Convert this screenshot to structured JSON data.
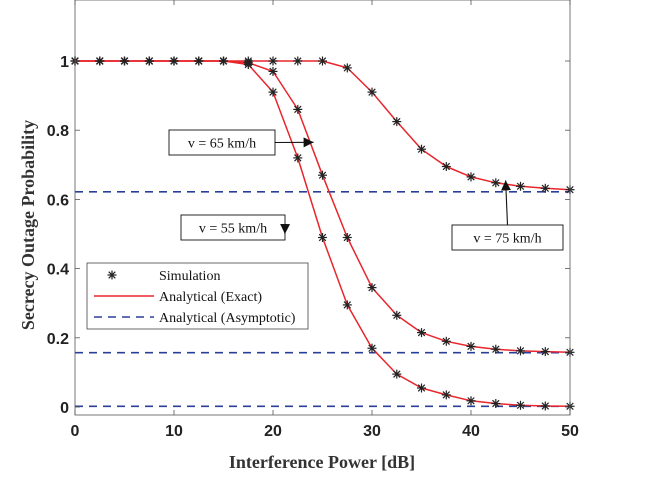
{
  "chart_data": {
    "type": "line",
    "xlabel": "Interference Power  [dB]",
    "ylabel": "Secrecy Outage Probability",
    "xlim": [
      0,
      50
    ],
    "ylim": [
      0,
      1
    ],
    "x_ticks": [
      "0",
      "10",
      "20",
      "30",
      "40",
      "50"
    ],
    "y_ticks": [
      "0",
      "0.2",
      "0.4",
      "0.6",
      "0.8",
      "1"
    ],
    "grid": false,
    "legend": {
      "position": "lower-left",
      "entries": [
        "Simulation",
        "Analytical (Exact)",
        "Analytical (Asymptotic)"
      ]
    },
    "colors": {
      "simulation": "#222222",
      "exact": "#e8262d",
      "asymptotic": "#2a3f9a"
    },
    "sim_x": [
      0,
      2.5,
      5,
      7.5,
      10,
      12.5,
      15,
      17.5,
      20,
      22.5,
      25,
      27.5,
      30,
      32.5,
      35,
      37.5,
      40,
      42.5,
      45,
      47.5,
      50
    ],
    "series": [
      {
        "label": "v = 75 km/h",
        "exact": [
          1,
          1,
          1,
          1,
          1,
          1,
          1,
          1,
          1,
          1,
          1,
          0.98,
          0.91,
          0.825,
          0.745,
          0.695,
          0.665,
          0.648,
          0.638,
          0.632,
          0.628
        ],
        "simulation": [
          1,
          1,
          1,
          1,
          1,
          1,
          1,
          1,
          1,
          1,
          1,
          0.98,
          0.91,
          0.825,
          0.745,
          0.695,
          0.665,
          0.648,
          0.638,
          0.632,
          0.628
        ],
        "asymptote": 0.622
      },
      {
        "label": "v = 65 km/h",
        "exact": [
          1,
          1,
          1,
          1,
          1,
          1,
          1,
          0.995,
          0.97,
          0.86,
          0.67,
          0.49,
          0.345,
          0.265,
          0.215,
          0.19,
          0.175,
          0.167,
          0.162,
          0.16,
          0.158
        ],
        "simulation": [
          1,
          1,
          1,
          1,
          1,
          1,
          1,
          0.995,
          0.97,
          0.86,
          0.67,
          0.49,
          0.345,
          0.265,
          0.215,
          0.19,
          0.175,
          0.167,
          0.162,
          0.16,
          0.158
        ],
        "asymptote": 0.157
      },
      {
        "label": "v = 55 km/h",
        "exact": [
          1,
          1,
          1,
          1,
          1,
          1,
          1,
          0.99,
          0.91,
          0.72,
          0.49,
          0.295,
          0.17,
          0.095,
          0.055,
          0.035,
          0.018,
          0.01,
          0.005,
          0.003,
          0.002
        ],
        "simulation": [
          1,
          1,
          1,
          1,
          1,
          1,
          1,
          0.99,
          0.91,
          0.72,
          0.49,
          0.295,
          0.17,
          0.095,
          0.055,
          0.035,
          0.018,
          0.01,
          0.005,
          0.003,
          0.002
        ],
        "asymptote": 0.002
      }
    ],
    "annotations": [
      {
        "text": "v = 65 km/h",
        "arrow_to": [
          24.1,
          0.765
        ]
      },
      {
        "text": "v = 55 km/h",
        "arrow_to": [
          21.2,
          0.5
        ]
      },
      {
        "text": "v = 75 km/h",
        "arrow_to": [
          43.5,
          0.655
        ]
      }
    ]
  }
}
